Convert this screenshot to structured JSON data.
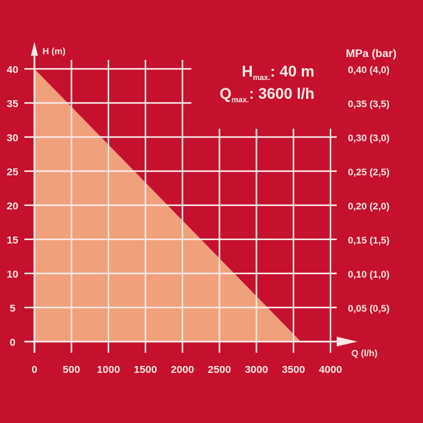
{
  "colors": {
    "background": "#c5102e",
    "area_fill": "#f1a07c",
    "grid": "#fbe9e6"
  },
  "chart_data": {
    "type": "area",
    "xlabel": "Q (l/h)",
    "ylabel": "H (m)",
    "y2label": "MPa (bar)",
    "xlim": [
      0,
      4000
    ],
    "ylim": [
      0,
      40
    ],
    "x_ticks": [
      "0",
      "500",
      "1000",
      "1500",
      "2000",
      "2500",
      "3000",
      "3500",
      "4000"
    ],
    "y_ticks": [
      "0",
      "5",
      "10",
      "15",
      "20",
      "25",
      "30",
      "35",
      "40"
    ],
    "y2_ticks": [
      "0,05 (0,5)",
      "0,10 (1,0)",
      "0,15 (1,5)",
      "0,20 (2,0)",
      "0,25 (2,5)",
      "0,30 (3,0)",
      "0,35 (3,5)",
      "0,40 (4,0)"
    ],
    "grid": true,
    "series": [
      {
        "x": [
          0,
          3600
        ],
        "y": [
          40,
          0
        ]
      }
    ],
    "annotations": {
      "hmax": {
        "symbol": "H",
        "sub": "max.",
        "value": ": 40 m"
      },
      "qmax": {
        "symbol": "Q",
        "sub": "max.",
        "value": ": 3600 l/h"
      }
    }
  }
}
